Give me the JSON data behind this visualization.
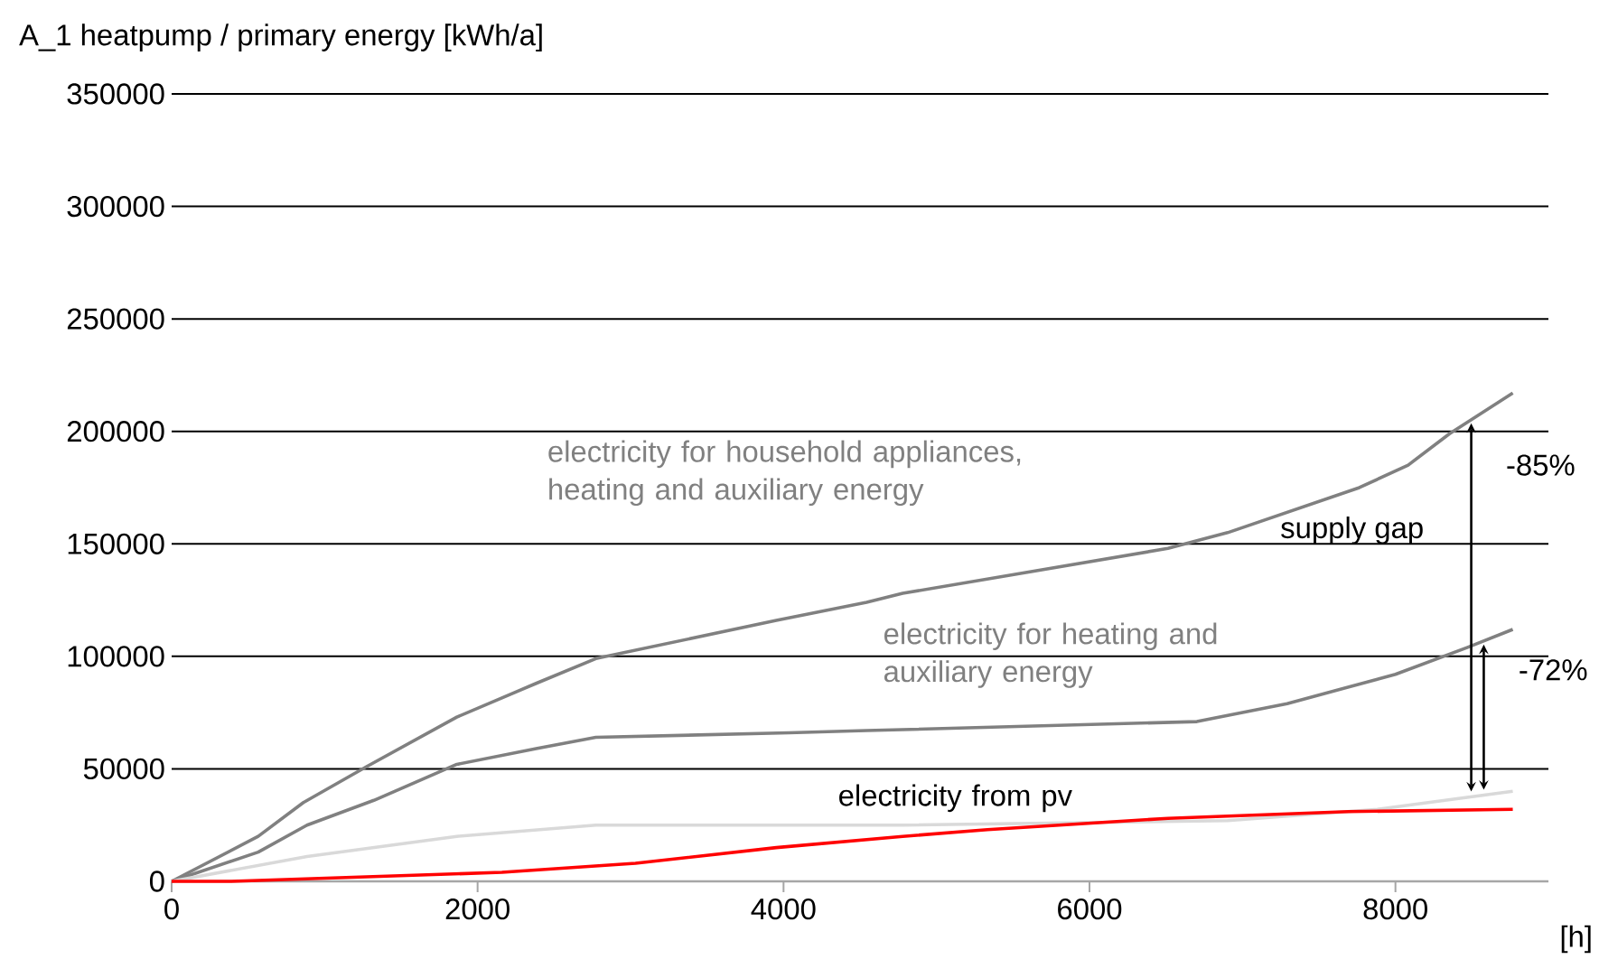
{
  "chart_data": {
    "type": "line",
    "ylabel": "A_1 heatpump / primary energy [kWh/a]",
    "xlabel": "[h]",
    "xlim": [
      0,
      9000
    ],
    "xticks": [
      0,
      2000,
      4000,
      6000,
      8000
    ],
    "ylim": [
      0,
      350000
    ],
    "yticks": [
      0,
      50000,
      100000,
      150000,
      200000,
      250000,
      300000,
      350000
    ],
    "grid": "y",
    "marker": "none",
    "line_style": "solid",
    "series": [
      {
        "name": "electricity for household appliances, heating and auxiliary energy",
        "color": "#808080",
        "x": [
          0,
          566,
          861,
          1274,
          1864,
          2383,
          2773,
          3953,
          4543,
          4779,
          6513,
          6903,
          7764,
          8083,
          8354,
          8767
        ],
        "values": [
          0,
          20000,
          35000,
          51000,
          73000,
          88000,
          99000,
          116000,
          124000,
          128000,
          148000,
          155000,
          175000,
          185000,
          199000,
          217000
        ]
      },
      {
        "name": "electricity for heating and auxiliary energy",
        "color": "#808080",
        "x": [
          0,
          566,
          885,
          1322,
          1864,
          2383,
          2773,
          4035,
          4543,
          6702,
          7292,
          8000,
          8472,
          8767
        ],
        "values": [
          0,
          13000,
          25000,
          36000,
          52000,
          59000,
          64000,
          66000,
          67000,
          71000,
          79000,
          92000,
          104000,
          112000
        ]
      },
      {
        "name": "electricity from pv",
        "color": "#ff0000",
        "x": [
          0,
          390,
          2159,
          3032,
          3953,
          4779,
          5333,
          6513,
          7693,
          8767
        ],
        "values": [
          0,
          0,
          4000,
          8000,
          15000,
          20000,
          23000,
          28000,
          31000,
          32000
        ]
      },
      {
        "color": "#d9d9d9",
        "x": [
          0,
          885,
          1864,
          2773,
          4779,
          6903,
          7882,
          8767
        ],
        "values": [
          0,
          11000,
          20000,
          25000,
          25000,
          27000,
          32000,
          40000
        ]
      }
    ],
    "annotations": [
      "supply gap",
      "-85%",
      "-72%"
    ]
  }
}
